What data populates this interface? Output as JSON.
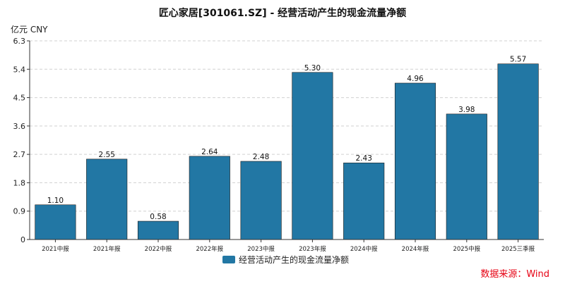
{
  "chart_data": {
    "type": "bar",
    "title": "匠心家居[301061.SZ] - 经营活动产生的现金流量净额",
    "unit_label": "亿元  CNY",
    "categories": [
      "2021中报",
      "2021年报",
      "2022中报",
      "2022年报",
      "2023中报",
      "2023年报",
      "2024中报",
      "2024年报",
      "2025中报",
      "2025三季报"
    ],
    "series": [
      {
        "name": "经营活动产生的现金流量净额",
        "values": [
          1.1,
          2.55,
          0.58,
          2.64,
          2.48,
          5.3,
          2.43,
          4.96,
          3.98,
          5.57
        ],
        "value_labels": [
          "1.10",
          "2.55",
          "0.58",
          "2.64",
          "2.48",
          "5.30",
          "2.43",
          "4.96",
          "3.98",
          "5.57"
        ]
      }
    ],
    "y_ticks": [
      "0",
      "0.9",
      "1.8",
      "2.7",
      "3.6",
      "4.5",
      "5.4",
      "6.3"
    ],
    "ylim": [
      0,
      6.3
    ],
    "grid": true,
    "legend_position": "bottom-center",
    "bar_color": "#2277a4",
    "source_note": "数据来源：Wind",
    "source_color": "#e60012"
  }
}
